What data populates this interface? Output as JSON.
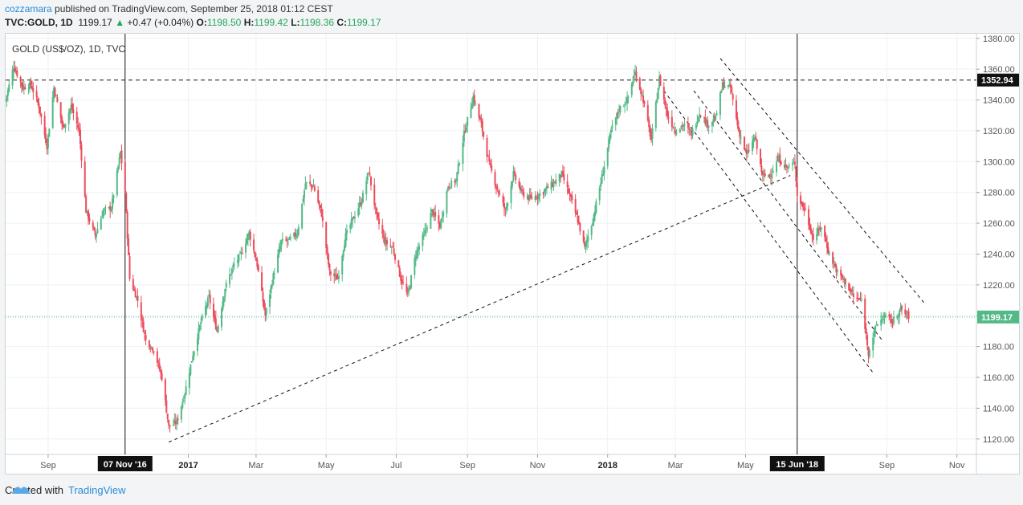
{
  "header": {
    "author": "cozzamara",
    "published": " published on TradingView.com, September 25, 2018 01:12 CEST",
    "symbol": "TVC:GOLD, 1D",
    "last": "1199.17",
    "arrow": "▲",
    "change": "+0.47 (+0.04%)",
    "o_label": "O:",
    "o": "1198.50",
    "h_label": "H:",
    "h": "1199.42",
    "l_label": "L:",
    "l": "1198.36",
    "c_label": "C:",
    "c": "1199.17"
  },
  "footer": {
    "created_with": "Created with",
    "brand": "TradingView"
  },
  "chart_data": {
    "type": "candlestick",
    "title": "GOLD (US$/OZ), 1D, TVC",
    "y_ticks": [
      "1120.00",
      "1140.00",
      "1160.00",
      "1180.00",
      "1200.00",
      "1220.00",
      "1240.00",
      "1260.00",
      "1280.00",
      "1300.00",
      "1320.00",
      "1340.00",
      "1360.00",
      "1380.00"
    ],
    "ylim": [
      1110,
      1383
    ],
    "x_ticks": [
      {
        "date": "2016-09-01",
        "label": "Sep",
        "bold": false
      },
      {
        "date": "2017-01-01",
        "label": "2017",
        "bold": true
      },
      {
        "date": "2017-03-01",
        "label": "Mar",
        "bold": false
      },
      {
        "date": "2017-05-01",
        "label": "May",
        "bold": false
      },
      {
        "date": "2017-07-01",
        "label": "Jul",
        "bold": false
      },
      {
        "date": "2017-09-01",
        "label": "Sep",
        "bold": false
      },
      {
        "date": "2017-11-01",
        "label": "Nov",
        "bold": false
      },
      {
        "date": "2018-01-01",
        "label": "2018",
        "bold": true
      },
      {
        "date": "2018-03-01",
        "label": "Mar",
        "bold": false
      },
      {
        "date": "2018-05-01",
        "label": "May",
        "bold": false
      },
      {
        "date": "2018-09-01",
        "label": "Sep",
        "bold": false
      },
      {
        "date": "2018-11-01",
        "label": "Nov",
        "bold": false
      }
    ],
    "xlim": [
      "2016-07-26",
      "2018-11-18"
    ],
    "markers": [
      {
        "date": "2016-11-07",
        "label": "07 Nov '16"
      },
      {
        "date": "2018-06-15",
        "label": "15 Jun '18"
      }
    ],
    "hline": {
      "value": 1352.94,
      "label": "1352.94"
    },
    "last_price": {
      "value": 1199.17,
      "label": "1199.17"
    },
    "trendlines": [
      {
        "from": [
          "2016-12-15",
          1118
        ],
        "to": [
          "2018-06-09",
          1291
        ]
      },
      {
        "from": [
          "2018-02-19",
          1346
        ],
        "to": [
          "2018-08-20",
          1163
        ]
      },
      {
        "from": [
          "2018-03-17",
          1346
        ],
        "to": [
          "2018-08-29",
          1183
        ]
      },
      {
        "from": [
          "2018-04-09",
          1367
        ],
        "to": [
          "2018-10-05",
          1207
        ]
      }
    ],
    "series_path": [
      [
        "2016-07-26",
        1340
      ],
      [
        "2016-08-02",
        1362
      ],
      [
        "2016-08-10",
        1348
      ],
      [
        "2016-08-17",
        1350
      ],
      [
        "2016-08-24",
        1336
      ],
      [
        "2016-08-31",
        1310
      ],
      [
        "2016-09-06",
        1348
      ],
      [
        "2016-09-14",
        1322
      ],
      [
        "2016-09-21",
        1336
      ],
      [
        "2016-09-28",
        1320
      ],
      [
        "2016-10-04",
        1268
      ],
      [
        "2016-10-12",
        1252
      ],
      [
        "2016-10-19",
        1268
      ],
      [
        "2016-10-26",
        1270
      ],
      [
        "2016-11-03",
        1306
      ],
      [
        "2016-11-07",
        1280
      ],
      [
        "2016-11-11",
        1224
      ],
      [
        "2016-11-18",
        1210
      ],
      [
        "2016-11-25",
        1184
      ],
      [
        "2016-12-02",
        1178
      ],
      [
        "2016-12-09",
        1160
      ],
      [
        "2016-12-15",
        1128
      ],
      [
        "2016-12-22",
        1131
      ],
      [
        "2016-12-29",
        1150
      ],
      [
        "2017-01-05",
        1175
      ],
      [
        "2017-01-12",
        1196
      ],
      [
        "2017-01-19",
        1212
      ],
      [
        "2017-01-26",
        1190
      ],
      [
        "2017-02-02",
        1218
      ],
      [
        "2017-02-09",
        1232
      ],
      [
        "2017-02-16",
        1240
      ],
      [
        "2017-02-23",
        1254
      ],
      [
        "2017-03-02",
        1233
      ],
      [
        "2017-03-09",
        1200
      ],
      [
        "2017-03-16",
        1226
      ],
      [
        "2017-03-23",
        1248
      ],
      [
        "2017-03-30",
        1249
      ],
      [
        "2017-04-06",
        1254
      ],
      [
        "2017-04-13",
        1286
      ],
      [
        "2017-04-20",
        1284
      ],
      [
        "2017-04-27",
        1266
      ],
      [
        "2017-05-04",
        1228
      ],
      [
        "2017-05-11",
        1224
      ],
      [
        "2017-05-18",
        1252
      ],
      [
        "2017-05-25",
        1264
      ],
      [
        "2017-06-01",
        1275
      ],
      [
        "2017-06-07",
        1294
      ],
      [
        "2017-06-14",
        1264
      ],
      [
        "2017-06-21",
        1248
      ],
      [
        "2017-06-28",
        1244
      ],
      [
        "2017-07-05",
        1224
      ],
      [
        "2017-07-11",
        1213
      ],
      [
        "2017-07-18",
        1240
      ],
      [
        "2017-07-25",
        1252
      ],
      [
        "2017-08-01",
        1268
      ],
      [
        "2017-08-08",
        1258
      ],
      [
        "2017-08-15",
        1284
      ],
      [
        "2017-08-22",
        1288
      ],
      [
        "2017-08-29",
        1318
      ],
      [
        "2017-09-06",
        1342
      ],
      [
        "2017-09-13",
        1324
      ],
      [
        "2017-09-20",
        1298
      ],
      [
        "2017-09-27",
        1282
      ],
      [
        "2017-10-04",
        1268
      ],
      [
        "2017-10-11",
        1292
      ],
      [
        "2017-10-18",
        1280
      ],
      [
        "2017-10-25",
        1276
      ],
      [
        "2017-11-01",
        1278
      ],
      [
        "2017-11-08",
        1282
      ],
      [
        "2017-11-15",
        1286
      ],
      [
        "2017-11-22",
        1292
      ],
      [
        "2017-11-29",
        1278
      ],
      [
        "2017-12-06",
        1262
      ],
      [
        "2017-12-12",
        1244
      ],
      [
        "2017-12-19",
        1262
      ],
      [
        "2017-12-27",
        1290
      ],
      [
        "2018-01-04",
        1320
      ],
      [
        "2018-01-11",
        1334
      ],
      [
        "2018-01-18",
        1340
      ],
      [
        "2018-01-25",
        1358
      ],
      [
        "2018-02-01",
        1340
      ],
      [
        "2018-02-08",
        1314
      ],
      [
        "2018-02-15",
        1354
      ],
      [
        "2018-02-22",
        1330
      ],
      [
        "2018-03-01",
        1320
      ],
      [
        "2018-03-08",
        1324
      ],
      [
        "2018-03-15",
        1318
      ],
      [
        "2018-03-22",
        1332
      ],
      [
        "2018-03-29",
        1324
      ],
      [
        "2018-04-05",
        1328
      ],
      [
        "2018-04-11",
        1350
      ],
      [
        "2018-04-18",
        1348
      ],
      [
        "2018-04-25",
        1320
      ],
      [
        "2018-05-02",
        1304
      ],
      [
        "2018-05-09",
        1316
      ],
      [
        "2018-05-16",
        1290
      ],
      [
        "2018-05-23",
        1292
      ],
      [
        "2018-05-30",
        1302
      ],
      [
        "2018-06-06",
        1296
      ],
      [
        "2018-06-13",
        1299
      ],
      [
        "2018-06-15",
        1278
      ],
      [
        "2018-06-22",
        1268
      ],
      [
        "2018-06-29",
        1250
      ],
      [
        "2018-07-06",
        1258
      ],
      [
        "2018-07-13",
        1240
      ],
      [
        "2018-07-20",
        1228
      ],
      [
        "2018-07-27",
        1222
      ],
      [
        "2018-08-03",
        1212
      ],
      [
        "2018-08-10",
        1210
      ],
      [
        "2018-08-16",
        1176
      ],
      [
        "2018-08-23",
        1194
      ],
      [
        "2018-08-30",
        1200
      ],
      [
        "2018-09-06",
        1196
      ],
      [
        "2018-09-13",
        1204
      ],
      [
        "2018-09-21",
        1199
      ]
    ]
  }
}
